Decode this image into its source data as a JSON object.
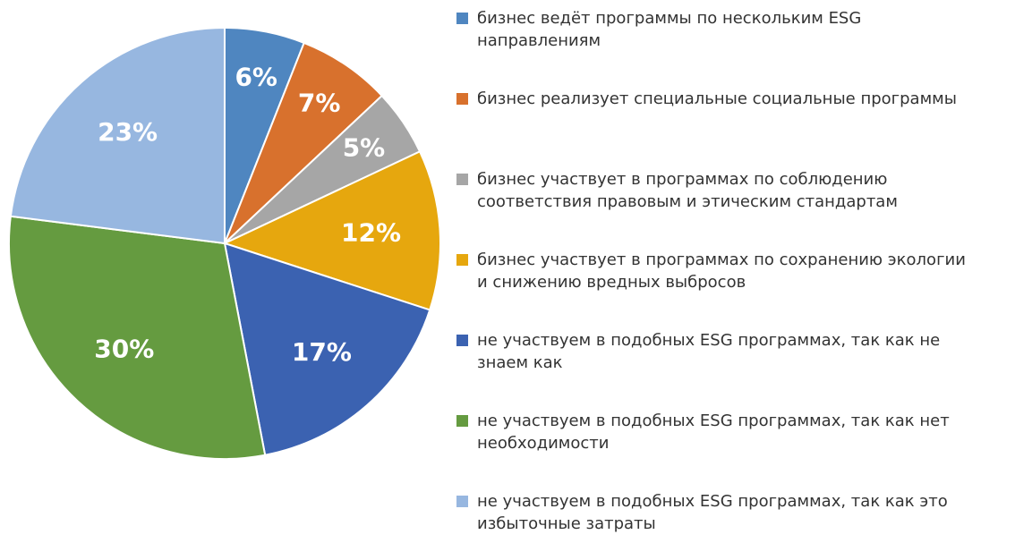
{
  "chart_data": {
    "type": "pie",
    "categories": [
      "бизнес ведёт программы по нескольким ESG направлениям",
      "бизнес реализует специальные социальные программы",
      "бизнес участвует в программах по соблюдению соответствия правовым и этическим стандартам",
      "бизнес участвует в программах по сохранению экологии и снижению вредных выбросов",
      "не участвуем в подобных ESG программах, так как не знаем как",
      "не участвуем в подобных ESG программах, так как нет необходимости",
      "не участвуем в подобных ESG программах, так как это избыточные затраты"
    ],
    "values": [
      6,
      7,
      5,
      12,
      17,
      30,
      23
    ],
    "value_labels": [
      "6%",
      "7%",
      "5%",
      "12%",
      "17%",
      "30%",
      "23%"
    ],
    "colors": [
      "#4f86c0",
      "#d8712d",
      "#a6a6a6",
      "#e6a70e",
      "#3b62b1",
      "#659b40",
      "#97b7e0"
    ],
    "legend": "right"
  }
}
